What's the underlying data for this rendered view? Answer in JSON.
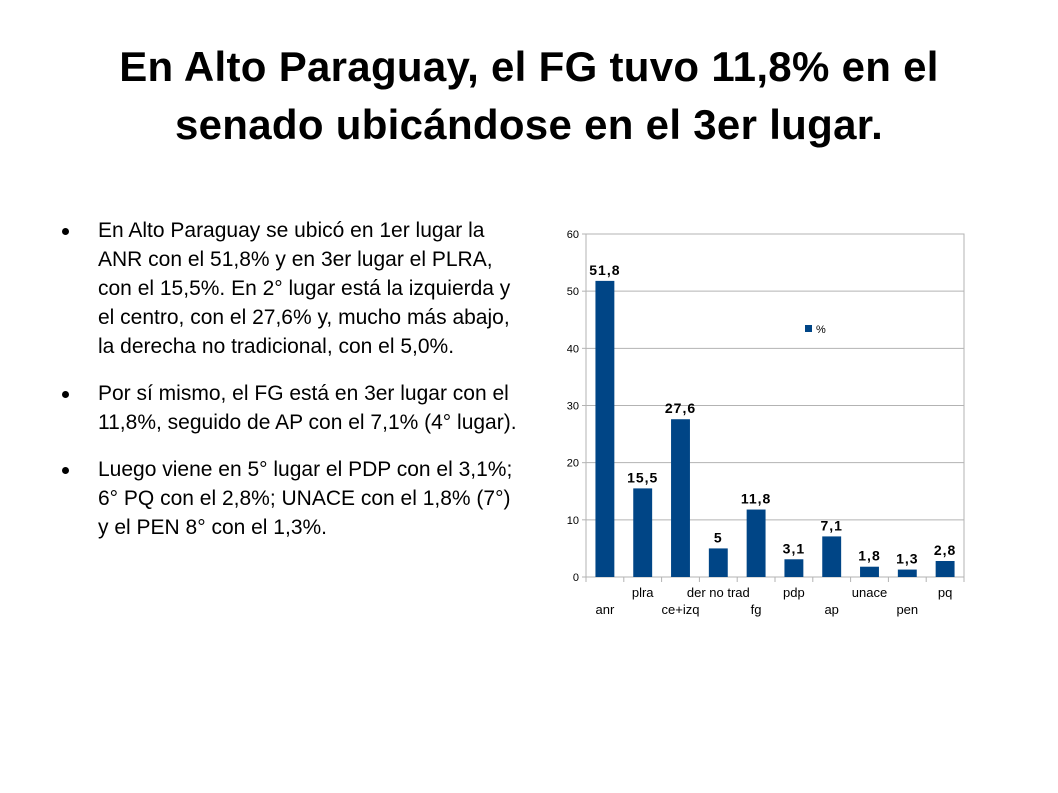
{
  "title": {
    "line1": "En Alto Paraguay, el FG tuvo 11,8% en el",
    "line2": "senado ubicándose en el 3er lugar."
  },
  "bullets": [
    "En Alto Paraguay se ubicó en 1er lugar la ANR con el 51,8% y en 3er lugar el PLRA, con el 15,5%. En 2° lugar está la izquierda y el centro, con el 27,6% y, mucho más abajo, la derecha no tradicional, con el 5,0%.",
    "Por sí mismo, el FG está en 3er lugar con el 11,8%, seguido de AP con el 7,1% (4° lugar).",
    "Luego viene en 5° lugar el PDP con el 3,1%; 6° PQ con el 2,8%; UNACE con el 1,8% (7°) y el PEN 8° con el 1,3%."
  ],
  "chart_data": {
    "type": "bar",
    "categories": [
      "anr",
      "plra",
      "ce+izq",
      "der no trad",
      "fg",
      "pdp",
      "ap",
      "unace",
      "pen",
      "pq"
    ],
    "series": [
      {
        "name": "%",
        "values": [
          51.8,
          15.5,
          27.6,
          5,
          11.8,
          3.1,
          7.1,
          1.8,
          1.3,
          2.8
        ],
        "data_labels": [
          "51,8",
          "15,5",
          "27,6",
          "5",
          "11,8",
          "3,1",
          "7,1",
          "1,8",
          "1,3",
          "2,8"
        ]
      }
    ],
    "ylim": [
      0,
      60
    ],
    "yticks": [
      0,
      10,
      20,
      30,
      40,
      50,
      60
    ],
    "grid": true,
    "legend": "inside-top-right",
    "bar_color": "#004586"
  }
}
